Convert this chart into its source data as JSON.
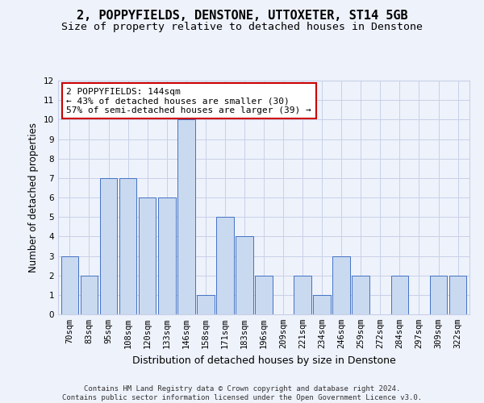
{
  "title": "2, POPPYFIELDS, DENSTONE, UTTOXETER, ST14 5GB",
  "subtitle": "Size of property relative to detached houses in Denstone",
  "xlabel": "Distribution of detached houses by size in Denstone",
  "ylabel": "Number of detached properties",
  "categories": [
    "70sqm",
    "83sqm",
    "95sqm",
    "108sqm",
    "120sqm",
    "133sqm",
    "146sqm",
    "158sqm",
    "171sqm",
    "183sqm",
    "196sqm",
    "209sqm",
    "221sqm",
    "234sqm",
    "246sqm",
    "259sqm",
    "272sqm",
    "284sqm",
    "297sqm",
    "309sqm",
    "322sqm"
  ],
  "values": [
    3,
    2,
    7,
    7,
    6,
    6,
    10,
    1,
    5,
    4,
    2,
    0,
    2,
    1,
    3,
    2,
    0,
    2,
    0,
    2,
    2
  ],
  "highlight_index": 6,
  "bar_color": "#c9d9f0",
  "bar_edge_color": "#4472c4",
  "annotation_text": "2 POPPYFIELDS: 144sqm\n← 43% of detached houses are smaller (30)\n57% of semi-detached houses are larger (39) →",
  "annotation_box_color": "#ffffff",
  "annotation_box_edge_color": "#cc0000",
  "ylim": [
    0,
    12
  ],
  "yticks": [
    0,
    1,
    2,
    3,
    4,
    5,
    6,
    7,
    8,
    9,
    10,
    11,
    12
  ],
  "footer1": "Contains HM Land Registry data © Crown copyright and database right 2024.",
  "footer2": "Contains public sector information licensed under the Open Government Licence v3.0.",
  "bg_color": "#eef2fb",
  "grid_color": "#c8d0e8",
  "title_fontsize": 11,
  "subtitle_fontsize": 9.5,
  "xlabel_fontsize": 9,
  "ylabel_fontsize": 8.5,
  "tick_fontsize": 7.5,
  "annotation_fontsize": 8,
  "footer_fontsize": 6.5
}
